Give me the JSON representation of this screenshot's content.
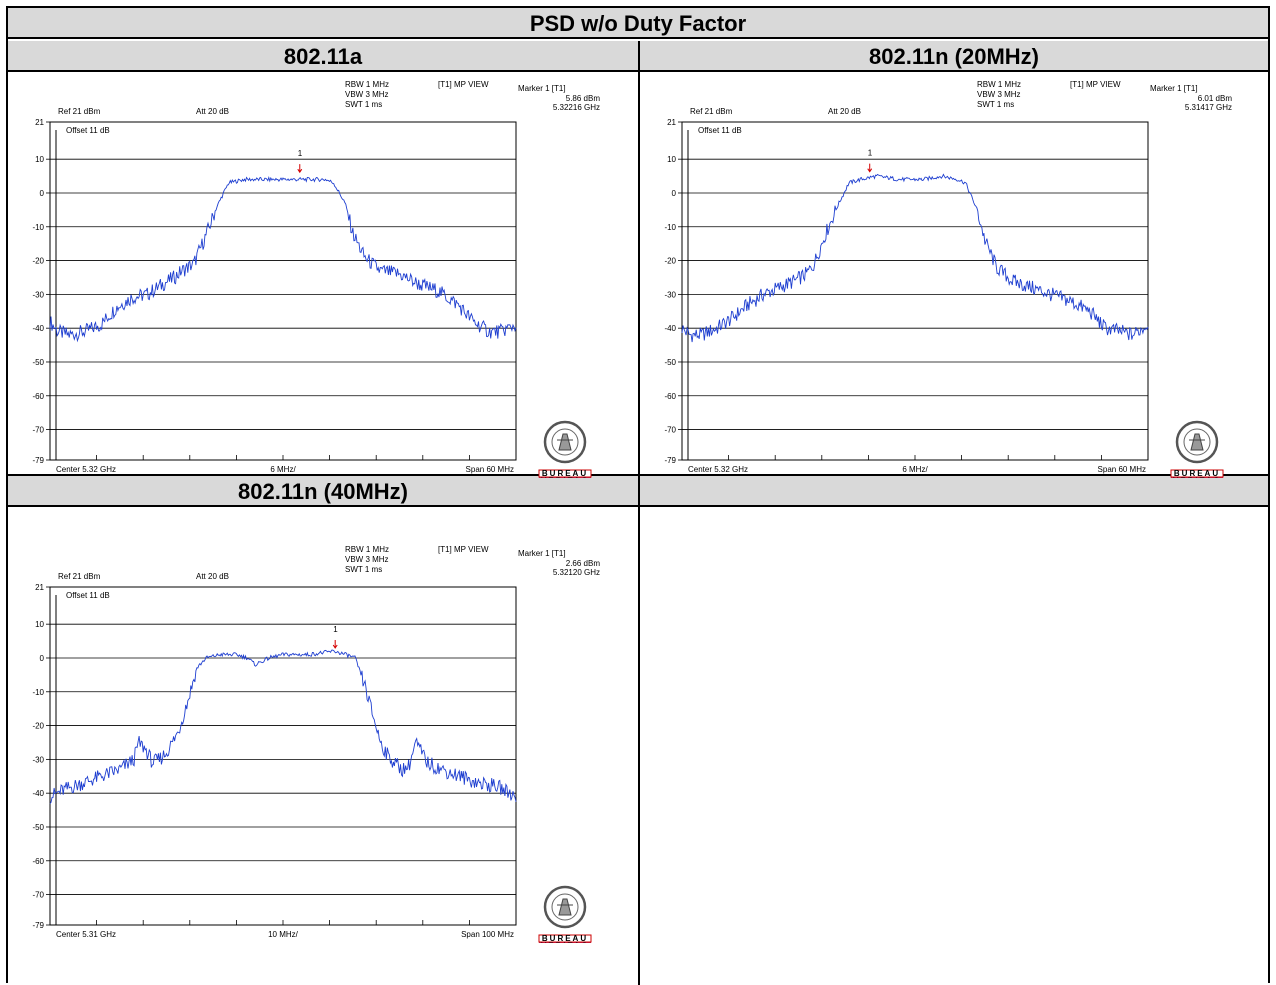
{
  "table": {
    "title": "PSD w/o Duty Factor"
  },
  "chart_data": [
    {
      "type": "line",
      "column_title": "802.11a",
      "header": {
        "rbw": "RBW 1 MHz",
        "vbw": "VBW 3 MHz",
        "swt": "SWT 1 ms",
        "trace": "[T1] MP VIEW",
        "marker": "Marker 1 [T1]",
        "marker_level": "5.86 dBm",
        "marker_freq": "5.32216 GHz",
        "ref": "Ref 21 dBm",
        "att": "Att  20 dB",
        "offset": "Offset 11 dB",
        "center": "Center 5.32 GHz",
        "div": "6 MHz/",
        "span": "Span 60 MHz"
      },
      "ylim": [
        -79,
        21
      ],
      "y_ticks": [
        "21",
        "10",
        "0",
        "-10",
        "-20",
        "-30",
        "-40",
        "-50",
        "-60",
        "-70",
        "-79"
      ],
      "xlim": [
        5.29,
        5.35
      ],
      "marker": {
        "x": 5.32216,
        "y": 5.86,
        "label": "1"
      },
      "series": [
        {
          "x": [
            5.29,
            5.291,
            5.2925,
            5.2945,
            5.2965,
            5.2985,
            5.3005,
            5.3025,
            5.3045,
            5.306,
            5.307,
            5.3085,
            5.31,
            5.3115,
            5.313,
            5.315,
            5.318,
            5.321,
            5.3235,
            5.3255,
            5.3265,
            5.328,
            5.329,
            5.3305,
            5.3325,
            5.335,
            5.3375,
            5.34,
            5.3425,
            5.3445,
            5.3465,
            5.348,
            5.35
          ],
          "y": [
            -38,
            -41,
            -42,
            -41,
            -39,
            -34,
            -31,
            -30,
            -27,
            -25,
            -23,
            -21,
            -13,
            -4,
            3,
            4,
            4,
            4,
            4,
            4,
            3,
            -3,
            -12,
            -19,
            -23,
            -24,
            -27,
            -29,
            -33,
            -38,
            -41,
            -41,
            -39
          ]
        }
      ]
    },
    {
      "type": "line",
      "column_title": "802.11n (20MHz)",
      "header": {
        "rbw": "RBW 1 MHz",
        "vbw": "VBW 3 MHz",
        "swt": "SWT 1 ms",
        "trace": "[T1] MP VIEW",
        "marker": "Marker 1 [T1]",
        "marker_level": "6.01 dBm",
        "marker_freq": "5.31417 GHz",
        "ref": "Ref 21 dBm",
        "att": "Att  20 dB",
        "offset": "Offset 11 dB",
        "center": "Center 5.32 GHz",
        "div": "6 MHz/",
        "span": "Span 60 MHz"
      },
      "ylim": [
        -79,
        21
      ],
      "y_ticks": [
        "21",
        "10",
        "0",
        "-10",
        "-20",
        "-30",
        "-40",
        "-50",
        "-60",
        "-70",
        "-79"
      ],
      "xlim": [
        5.29,
        5.35
      ],
      "marker": {
        "x": 5.31417,
        "y": 6.01,
        "label": "1"
      },
      "series": [
        {
          "x": [
            5.29,
            5.291,
            5.2925,
            5.2945,
            5.2965,
            5.2985,
            5.3005,
            5.3025,
            5.3045,
            5.306,
            5.307,
            5.3085,
            5.31,
            5.3115,
            5.313,
            5.315,
            5.318,
            5.321,
            5.3235,
            5.3255,
            5.3265,
            5.328,
            5.329,
            5.3305,
            5.3325,
            5.335,
            5.3375,
            5.34,
            5.3425,
            5.3445,
            5.3465,
            5.348,
            5.35
          ],
          "y": [
            -40,
            -42,
            -42,
            -40,
            -37,
            -33,
            -30,
            -28,
            -26,
            -24,
            -21,
            -12,
            -4,
            3,
            4,
            5,
            4,
            4,
            5,
            4,
            3,
            -5,
            -14,
            -22,
            -26,
            -28,
            -30,
            -32,
            -35,
            -40,
            -41,
            -42,
            -39
          ]
        }
      ]
    },
    {
      "type": "line",
      "column_title": "802.11n (40MHz)",
      "header": {
        "rbw": "RBW 1 MHz",
        "vbw": "VBW 3 MHz",
        "swt": "SWT 1 ms",
        "trace": "[T1] MP VIEW",
        "marker": "Marker 1 [T1]",
        "marker_level": "2.66 dBm",
        "marker_freq": "5.32120 GHz",
        "ref": "Ref 21 dBm",
        "att": "Att  20 dB",
        "offset": "Offset 11 dB",
        "center": "Center 5.31 GHz",
        "div": "10 MHz/",
        "span": "Span 100 MHz"
      },
      "ylim": [
        -79,
        21
      ],
      "y_ticks": [
        "21",
        "10",
        "0",
        "-10",
        "-20",
        "-30",
        "-40",
        "-50",
        "-60",
        "-70",
        "-79"
      ],
      "xlim": [
        5.26,
        5.36
      ],
      "marker": {
        "x": 5.3212,
        "y": 2.66,
        "label": "1"
      },
      "series": [
        {
          "x": [
            5.26,
            5.263,
            5.267,
            5.271,
            5.275,
            5.278,
            5.279,
            5.2805,
            5.282,
            5.2835,
            5.285,
            5.2875,
            5.2895,
            5.2915,
            5.2935,
            5.2965,
            5.3,
            5.3025,
            5.304,
            5.307,
            5.31,
            5.3155,
            5.321,
            5.3235,
            5.3255,
            5.3275,
            5.3295,
            5.331,
            5.3325,
            5.334,
            5.3355,
            5.337,
            5.3385,
            5.341,
            5.344,
            5.348,
            5.352,
            5.356,
            5.36
          ],
          "y": [
            -41,
            -39,
            -37,
            -35,
            -33,
            -30,
            -25,
            -27,
            -31,
            -30,
            -28,
            -22,
            -13,
            -3,
            0,
            1,
            1,
            0,
            -2,
            0,
            1,
            1,
            2,
            1,
            0,
            -8,
            -18,
            -25,
            -29,
            -31,
            -33,
            -32,
            -25,
            -31,
            -33,
            -35,
            -37,
            -38,
            -41
          ]
        }
      ]
    }
  ]
}
